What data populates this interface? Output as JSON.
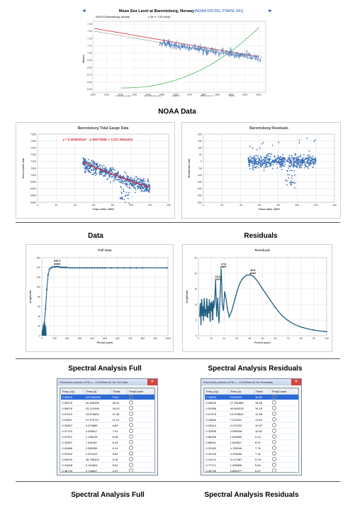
{
  "captions": {
    "noaa": "NOAA Data",
    "data": "Data",
    "residuals": "Residuals",
    "spec_full": "Spectral Analysis Full",
    "spec_resid": "Spectral Analysis Residuals",
    "table_full": "Spectral Analysis Full",
    "table_resid": "Spectral Analysis Residuals"
  },
  "colors": {
    "series": "#3a6fb7",
    "trend": "#d9262b",
    "spectrum": "#1f5f80",
    "green": "#3aa84a"
  },
  "noaa_chart": {
    "title": "Mean Sea Level at Barentsburg, Norway",
    "title_links": "[NOAA 025-001, PSMSL 541]",
    "subtitle_left": "025-001 Barentsburg, Norway",
    "subtitle_right": "-2.38 +/- 0.42 mm/yr",
    "xticks": [
      "1900",
      "1910",
      "1920",
      "1930",
      "1940",
      "1950",
      "1960",
      "1970",
      "1980",
      "1990",
      "2000",
      "2010",
      "2020"
    ],
    "yticks_left": [
      "7.40",
      "7.30",
      "7.20",
      "7.10",
      "7.00",
      "6.90",
      "6.80",
      "6.70",
      "6.60",
      "6.50"
    ],
    "ylabel": "Meters",
    "legend": [
      "CO2 data series",
      "CO2 (Mauna Loa)",
      "linear fit",
      "95% conf L.S.",
      "GMSL"
    ]
  },
  "chart_data": [
    {
      "type": "scatter",
      "title": "Barentsburg Tidal Gauge Data",
      "xlabel": "Years after 1900",
      "ylabel": "Sea Levels mm",
      "xlim": [
        0,
        140
      ],
      "ylim": [
        6800,
        7300
      ],
      "xticks": [
        0,
        20,
        40,
        60,
        80,
        100,
        120,
        140
      ],
      "yticks": [
        6800,
        6850,
        6900,
        6950,
        7000,
        7050,
        7100,
        7150,
        7200,
        7250,
        7300
      ],
      "x_range": [
        48,
        120
      ],
      "point_count": 800,
      "trend_equation": "y = 0.00362913x² - 3.16677695x + 7,237.39441101",
      "trend": {
        "type": "poly2",
        "a": 0.00362913,
        "b": -3.16677695,
        "c": 7237.39441101
      }
    },
    {
      "type": "scatter",
      "title": "Barentsburg Residuals",
      "xlabel": "Years after 1900",
      "ylabel": "Residuals mm",
      "xlim": [
        0,
        140
      ],
      "ylim": [
        -300,
        200
      ],
      "xticks": [
        0,
        20,
        40,
        60,
        80,
        100,
        120,
        140
      ],
      "yticks": [
        -300,
        -250,
        -200,
        -150,
        -100,
        -50,
        0,
        50,
        100,
        150,
        200
      ],
      "x_range": [
        48,
        120
      ],
      "point_count": 800
    },
    {
      "type": "scatter",
      "title": "Full Data",
      "xlabel": "Period years",
      "ylabel": "Amplitude",
      "xlim": [
        0,
        1000
      ],
      "ylim": [
        0,
        160
      ],
      "xticks": [
        0,
        100,
        200,
        300,
        400,
        500,
        600,
        700,
        800,
        900,
        1000
      ],
      "yticks": [
        0,
        20,
        40,
        60,
        80,
        100,
        120,
        140,
        160
      ],
      "annotation": {
        "text": [
          "122.1",
          "years"
        ],
        "x": 122.1,
        "y": 142
      },
      "points": [
        [
          20,
          28
        ],
        [
          30,
          55
        ],
        [
          40,
          95
        ],
        [
          50,
          125
        ],
        [
          60,
          136
        ],
        [
          70,
          139
        ],
        [
          80,
          140
        ],
        [
          90,
          141
        ],
        [
          100,
          141
        ],
        [
          110,
          141
        ],
        [
          122,
          142
        ],
        [
          130,
          141
        ],
        [
          140,
          141
        ],
        [
          150,
          140
        ],
        [
          160,
          140
        ],
        [
          170,
          140
        ],
        [
          180,
          140
        ],
        [
          190,
          140
        ],
        [
          200,
          140
        ],
        [
          220,
          139
        ],
        [
          240,
          139
        ],
        [
          260,
          139
        ],
        [
          280,
          139
        ],
        [
          300,
          139
        ],
        [
          320,
          139
        ],
        [
          340,
          139
        ],
        [
          360,
          139
        ],
        [
          380,
          139
        ],
        [
          400,
          139
        ],
        [
          420,
          139
        ],
        [
          440,
          139
        ],
        [
          460,
          139
        ],
        [
          480,
          139
        ],
        [
          500,
          139
        ],
        [
          550,
          139
        ],
        [
          600,
          139
        ],
        [
          650,
          139
        ],
        [
          700,
          139
        ],
        [
          750,
          139
        ],
        [
          800,
          139
        ],
        [
          990,
          139
        ]
      ],
      "low_points": [
        [
          1,
          5
        ],
        [
          2,
          12
        ],
        [
          3,
          3
        ],
        [
          4,
          18
        ],
        [
          5,
          8
        ],
        [
          6,
          24
        ],
        [
          7,
          6
        ],
        [
          8,
          14
        ],
        [
          9,
          4
        ],
        [
          10,
          22
        ],
        [
          11,
          10
        ],
        [
          12,
          26
        ],
        [
          13,
          5
        ],
        [
          14,
          15
        ],
        [
          15,
          9
        ],
        [
          16,
          20
        ],
        [
          17,
          7
        ]
      ]
    },
    {
      "type": "scatter",
      "title": "Residuals",
      "xlabel": "Period years",
      "ylabel": "Amplitude",
      "xlim": [
        0,
        100
      ],
      "ylim": [
        0,
        25
      ],
      "xticks": [
        0,
        10,
        20,
        30,
        40,
        50,
        60,
        70,
        80,
        90,
        100
      ],
      "yticks": [
        0,
        5,
        10,
        15,
        20,
        25
      ],
      "annotations": [
        {
          "text": [
            "13.4",
            "years"
          ],
          "x": 13.4,
          "y": 17.5
        },
        {
          "text": [
            "17.8",
            "years"
          ],
          "x": 17.8,
          "y": 21.5
        },
        {
          "text": [
            "40.8",
            "years"
          ],
          "x": 40.8,
          "y": 19.5
        }
      ]
    }
  ],
  "table_full": {
    "title": "Prominent periods of Fill-1 - CUSHtest #1 for Full Data",
    "headers": [
      "Freq (c/y)",
      "Time (d)",
      "Theta",
      "Freq/Lower"
    ],
    "rows": [
      [
        "0.00819",
        "122.064160",
        "FULL"
      ],
      [
        "0.00475",
        "16.268106",
        "26.51"
      ],
      [
        "0.05678",
        "15.121498",
        "16.20"
      ],
      [
        "0.07013",
        "13.874690",
        "11.28"
      ],
      [
        "0.02657",
        "37.372707",
        "11.01"
      ],
      [
        "0.22857",
        "4.374685",
        "8.63"
      ],
      [
        "0.47722",
        "2.095517",
        "7.91"
      ],
      [
        "0.97912",
        "1.136125",
        "6.98"
      ],
      [
        "0.15367",
        "7.491267",
        "6.43"
      ],
      [
        "0.41868",
        "2.383330",
        "6.14"
      ],
      [
        "0.97842",
        "1.021612",
        "5.81"
      ],
      [
        "0.03978",
        "25.796329",
        "5.78"
      ],
      [
        "0.31828",
        "3.141804",
        "5.51"
      ],
      [
        "0.36733",
        "2.748647",
        "4.21"
      ],
      [
        "0.37462",
        "2.669329",
        "4.13"
      ],
      [
        "0.76433",
        "1.308375",
        "3.86"
      ],
      [
        "0.58567",
        "1.008034",
        "3.56"
      ]
    ]
  },
  "table_resid": {
    "title": "Prominent periods of Fill-1 - CUSHtest #1 for Residuals",
    "headers": [
      "Freq (c/y)",
      "Time (d)",
      "Theta",
      "Freq/Lower"
    ],
    "rows": [
      [
        "0.10853",
        "9.812870",
        "18.52"
      ],
      [
        "0.05633",
        "17.781989",
        "18.28"
      ],
      [
        "0.02458",
        "40.849215",
        "16.15"
      ],
      [
        "0.07475",
        "13.378642",
        "12.08"
      ],
      [
        "0.13853",
        "7.219231",
        "11.69"
      ],
      [
        "0.23414",
        "4.271022",
        "10.57"
      ],
      [
        "0.47806",
        "2.095948",
        "10.52"
      ],
      [
        "0.56159",
        "1.810690",
        "9.14"
      ],
      [
        "0.66541",
        "1.502817",
        "8.37"
      ],
      [
        "0.24183",
        "4.135246",
        "7.76"
      ],
      [
        "0.42126",
        "2.375826",
        "7.32"
      ],
      [
        "0.31472",
        "3.177467",
        "5.78"
      ],
      [
        "0.77171",
        "1.295836",
        "5.63"
      ],
      [
        "0.45718",
        "0.854477",
        "5.47"
      ],
      [
        "0.58816",
        "1.700216",
        "5.43"
      ],
      [
        "0.91763",
        "1.089776",
        "5.14"
      ],
      [
        "0.19760",
        "5.060806",
        "4.38"
      ],
      [
        "0.27790",
        "3.603830",
        "4.13"
      ]
    ]
  }
}
